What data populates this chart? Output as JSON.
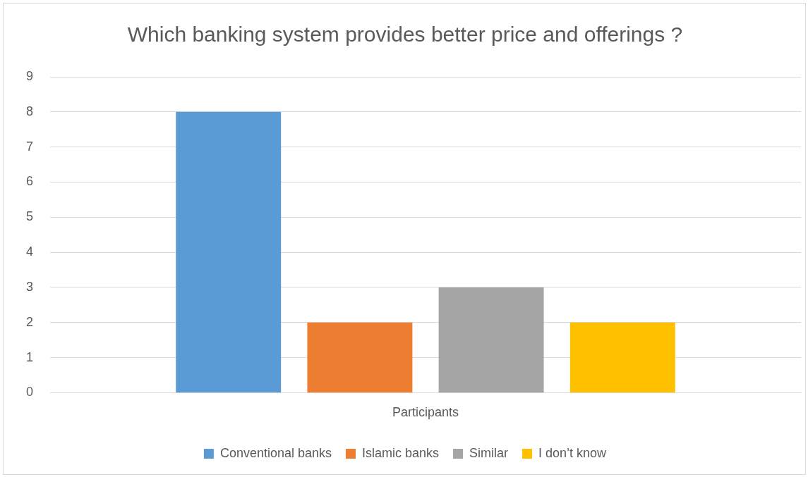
{
  "chart_data": {
    "type": "bar",
    "title": "Which banking system provides better price and offerings ?",
    "categories": [
      "Participants"
    ],
    "series": [
      {
        "name": "Conventional banks",
        "color": "#5b9bd5",
        "values": [
          8
        ]
      },
      {
        "name": "Islamic banks",
        "color": "#ed7d31",
        "values": [
          2
        ]
      },
      {
        "name": "Similar",
        "color": "#a5a5a5",
        "values": [
          3
        ]
      },
      {
        "name": "I don’t know",
        "color": "#ffc000",
        "values": [
          2
        ]
      }
    ],
    "ylim": [
      0,
      9
    ],
    "yticks": [
      0,
      1,
      2,
      3,
      4,
      5,
      6,
      7,
      8,
      9
    ],
    "grid": "y",
    "legend": "bottom"
  }
}
